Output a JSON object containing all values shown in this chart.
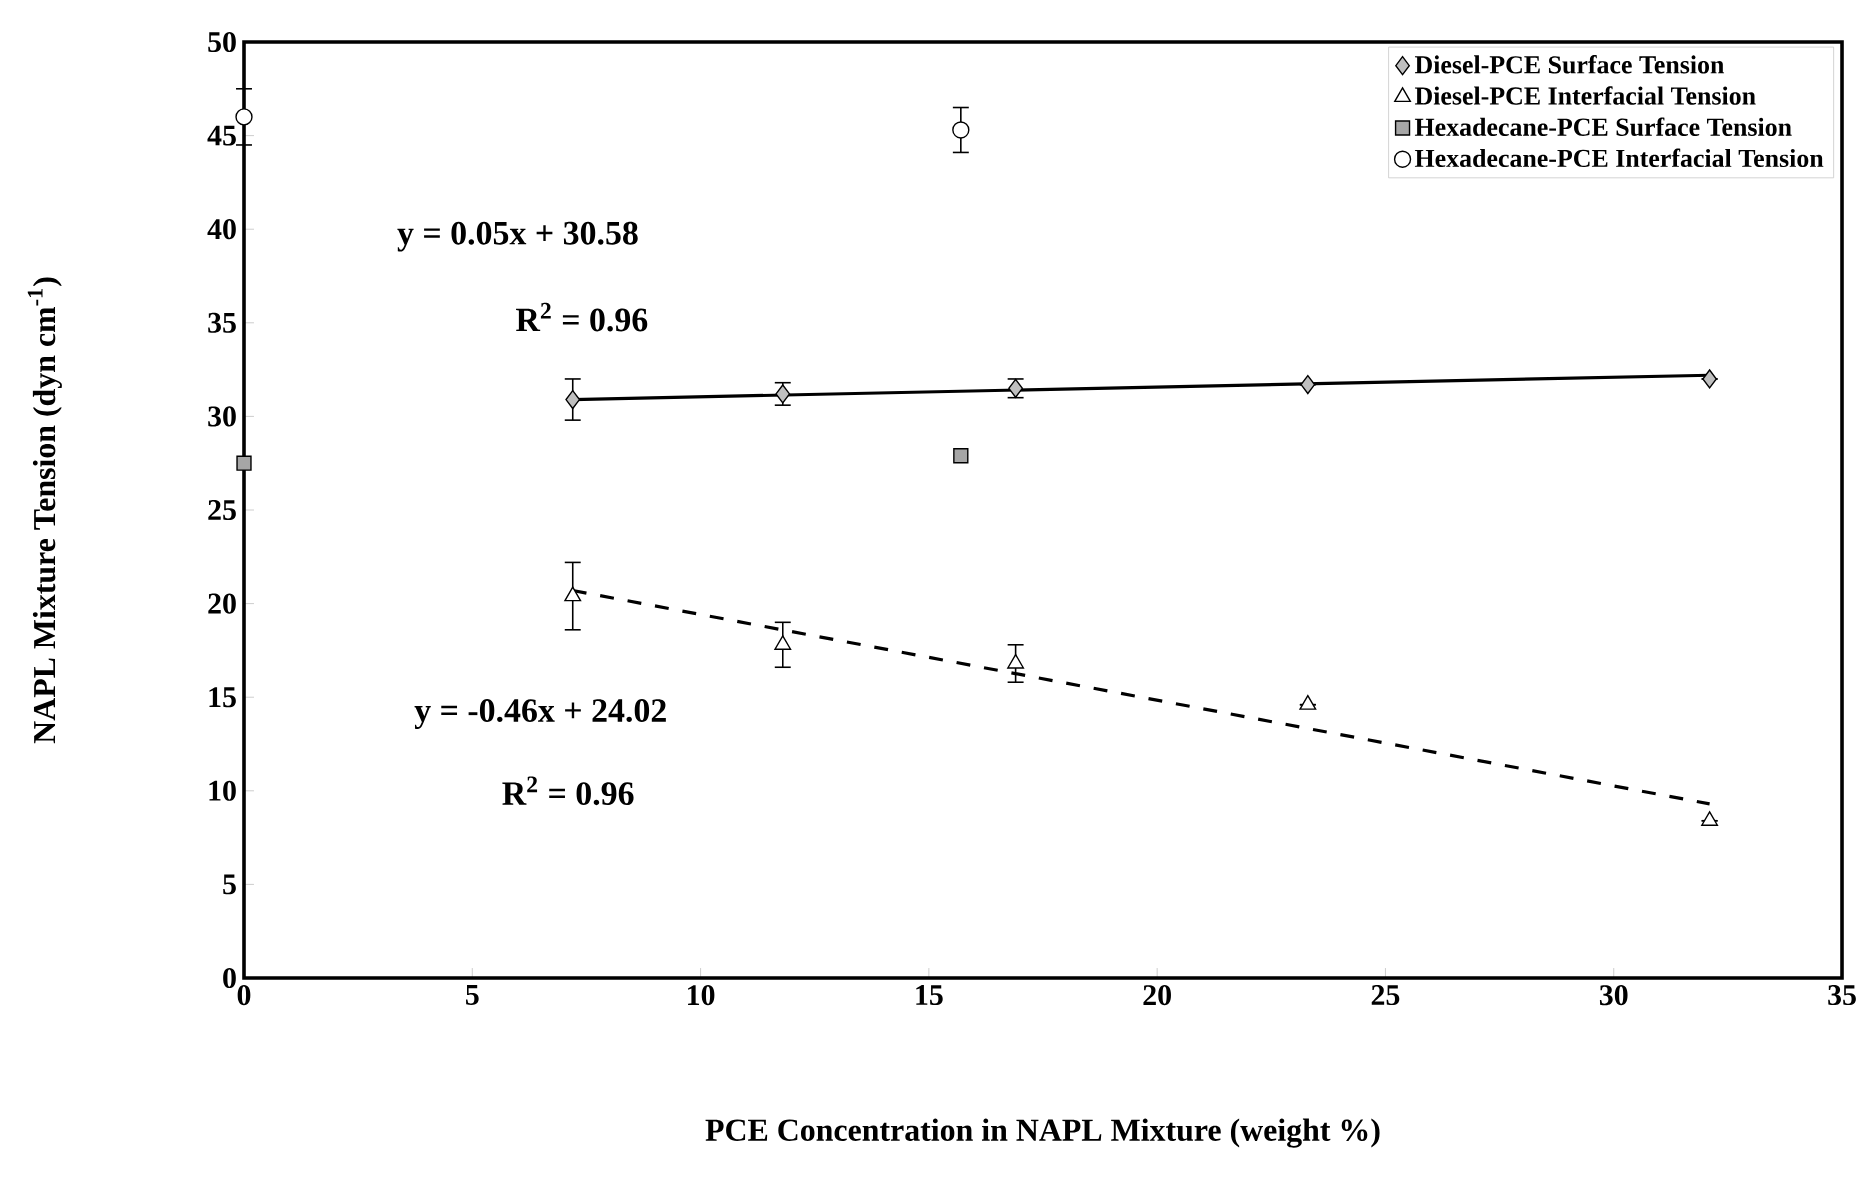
{
  "chart_data": {
    "type": "scatter",
    "xlabel": "PCE Concentration in NAPL Mixture (weight %)",
    "ylabel": "NAPL Mixture Tension (dyn cm$^{-1}$)",
    "xlim": [
      0,
      35
    ],
    "ylim": [
      0,
      50
    ],
    "xticks": [
      0,
      5,
      10,
      15,
      20,
      25,
      30,
      35
    ],
    "yticks": [
      0,
      5,
      10,
      15,
      20,
      25,
      30,
      35,
      40,
      45,
      50
    ],
    "grid": false,
    "legend": "top right",
    "series": [
      {
        "name": "Diesel-PCE Surface Tension",
        "color": "#bfbfbf",
        "marker": "diamond",
        "x": [
          7.2,
          11.8,
          16.9,
          23.3,
          32.1
        ],
        "values": [
          30.9,
          31.2,
          31.5,
          31.7,
          32.0
        ],
        "errors": [
          1.1,
          0.6,
          0.5,
          null,
          null
        ]
      },
      {
        "name": "Diesel-PCE Interfacial Tension",
        "color": "#000000",
        "marker": "triangle",
        "x": [
          7.2,
          11.8,
          16.9,
          23.3,
          32.1
        ],
        "values": [
          20.4,
          17.8,
          16.8,
          14.6,
          8.4
        ],
        "errors": [
          1.8,
          1.2,
          1.0,
          null,
          null
        ]
      },
      {
        "name": "Hexadecane-PCE Surface Tension",
        "color": "#a6a6a6",
        "marker": "square",
        "x": [
          0,
          15.7
        ],
        "values": [
          27.5,
          27.9
        ]
      },
      {
        "name": "Hexadecane-PCE Interfacial Tension",
        "color": "#000000",
        "marker": "circle",
        "x": [
          0,
          15.7
        ],
        "values": [
          46.0,
          45.3
        ],
        "errors": [
          1.5,
          1.2
        ]
      },
      {
        "type": "line",
        "color": "#000000",
        "line_style": "solid",
        "marker": "none",
        "x": [
          7.2,
          32.1
        ],
        "values": [
          30.9,
          32.2
        ]
      },
      {
        "type": "line",
        "color": "#000000",
        "line_style": "dashed",
        "marker": "none",
        "x": [
          7.2,
          32.1
        ],
        "values": [
          20.7,
          9.3
        ]
      }
    ],
    "annotations": [
      "y = 0.05x + 30.58",
      "R$^{2}$ = 0.96",
      "y = -0.46x + 24.02",
      "R$^{2}$ = 0.96"
    ]
  }
}
